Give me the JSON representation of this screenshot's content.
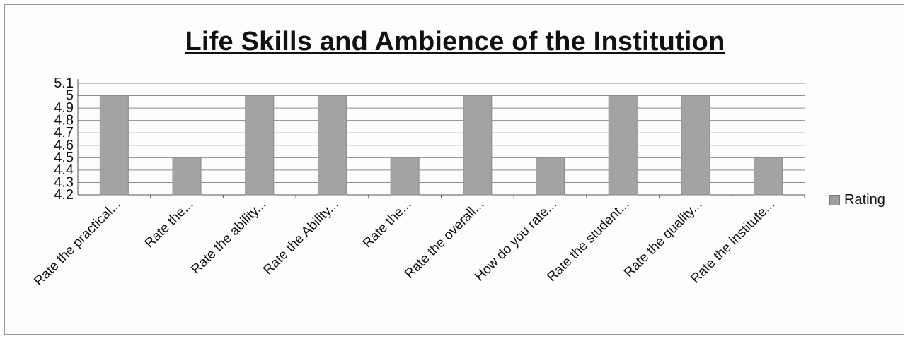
{
  "colors": {
    "bar": "#a3a3a3",
    "bar_edge": "#8a8a8a",
    "grid": "#8c8c8c",
    "text": "#111111"
  },
  "chart_data": {
    "type": "bar",
    "title": "Life Skills  and Ambience of the Institution",
    "categories": [
      "Rate the practical...",
      "Rate the...",
      "Rate the ability...",
      "Rate the Ability...",
      "Rate the...",
      "Rate the overall...",
      "How do you rate...",
      "Rate the student...",
      "Rate the quality...",
      "Rate the institute..."
    ],
    "series": [
      {
        "name": "Rating",
        "values": [
          5,
          4.5,
          5,
          5,
          4.5,
          5,
          4.5,
          5,
          5,
          4.5
        ]
      }
    ],
    "ylim": [
      4.2,
      5.1
    ],
    "yticks": [
      "4.2",
      "4.3",
      "4.4",
      "4.5",
      "4.6",
      "4.7",
      "4.8",
      "4.9",
      "5",
      "5.1"
    ],
    "grid": true,
    "legend_position": "right"
  }
}
